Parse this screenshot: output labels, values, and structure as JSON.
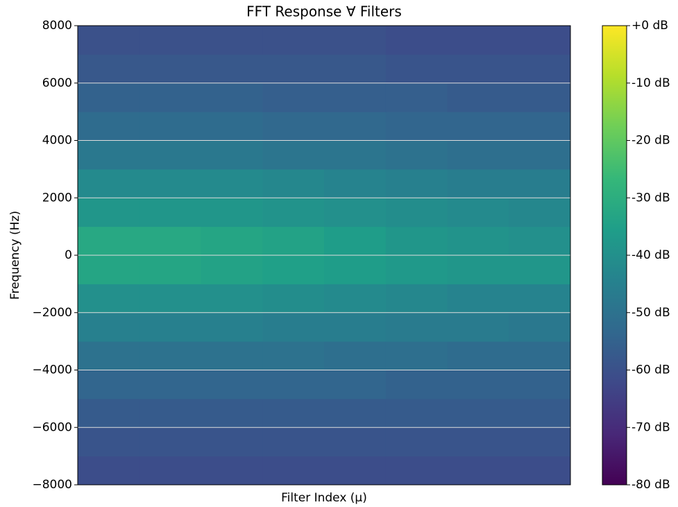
{
  "chart_data": {
    "type": "heatmap",
    "title": "FFT Response ∀ Filters",
    "x_label": "Filter Index (μ)",
    "y_label": "Frequency (Hz)",
    "categories": [
      null,
      null,
      null,
      null,
      null,
      null,
      null,
      null
    ],
    "ybins": [
      -8000,
      -7000,
      -6000,
      -5000,
      -4000,
      -3000,
      -2000,
      -1000,
      0,
      1000,
      2000,
      3000,
      4000,
      5000,
      6000,
      7000,
      8000
    ],
    "values": [
      [
        -61,
        -61,
        -61,
        -61,
        -61,
        -61,
        -61,
        -61
      ],
      [
        -59,
        -59,
        -59,
        -59,
        -59,
        -59,
        -59,
        -59
      ],
      [
        -57,
        -57,
        -57,
        -57,
        -57,
        -57,
        -57,
        -57
      ],
      [
        -54,
        -54,
        -54,
        -54,
        -54,
        -55,
        -55,
        -55
      ],
      [
        -50,
        -50,
        -50,
        -50,
        -51,
        -51,
        -52,
        -52
      ],
      [
        -45,
        -45,
        -45,
        -46,
        -46,
        -47,
        -47,
        -48
      ],
      [
        -40,
        -40,
        -40,
        -41,
        -42,
        -43,
        -44,
        -44
      ],
      [
        -33,
        -33,
        -34,
        -35,
        -36,
        -37,
        -38,
        -38
      ],
      [
        -32,
        -32,
        -33,
        -34,
        -36,
        -38,
        -39,
        -40
      ],
      [
        -38,
        -38,
        -38,
        -39,
        -40,
        -41,
        -42,
        -43
      ],
      [
        -42,
        -42,
        -42,
        -43,
        -44,
        -45,
        -46,
        -46
      ],
      [
        -48,
        -48,
        -48,
        -49,
        -49,
        -50,
        -51,
        -51
      ],
      [
        -52,
        -52,
        -52,
        -53,
        -53,
        -54,
        -54,
        -54
      ],
      [
        -55,
        -55,
        -55,
        -56,
        -56,
        -56,
        -57,
        -57
      ],
      [
        -58,
        -58,
        -58,
        -58,
        -58,
        -59,
        -59,
        -59
      ],
      [
        -60,
        -60,
        -60,
        -60,
        -60,
        -61,
        -61,
        -61
      ]
    ],
    "ylim": [
      -8000,
      8000
    ],
    "yticks": [
      {
        "value": -8000,
        "label": "−8000"
      },
      {
        "value": -6000,
        "label": "−6000"
      },
      {
        "value": -4000,
        "label": "−4000"
      },
      {
        "value": -2000,
        "label": "−2000"
      },
      0,
      2000,
      4000,
      6000,
      8000
    ],
    "grid": true,
    "colormap": "viridis",
    "zlim": [
      -80,
      0
    ],
    "zticks": [
      {
        "value": 0,
        "label": "+0 dB"
      },
      {
        "value": -10,
        "label": "-10 dB"
      },
      {
        "value": -20,
        "label": "-20 dB"
      },
      {
        "value": -30,
        "label": "-30 dB"
      },
      {
        "value": -40,
        "label": "-40 dB"
      },
      {
        "value": -50,
        "label": "-50 dB"
      },
      {
        "value": -60,
        "label": "-60 dB"
      },
      {
        "value": -70,
        "label": "-70 dB"
      },
      {
        "value": -80,
        "label": "-80 dB"
      }
    ]
  }
}
